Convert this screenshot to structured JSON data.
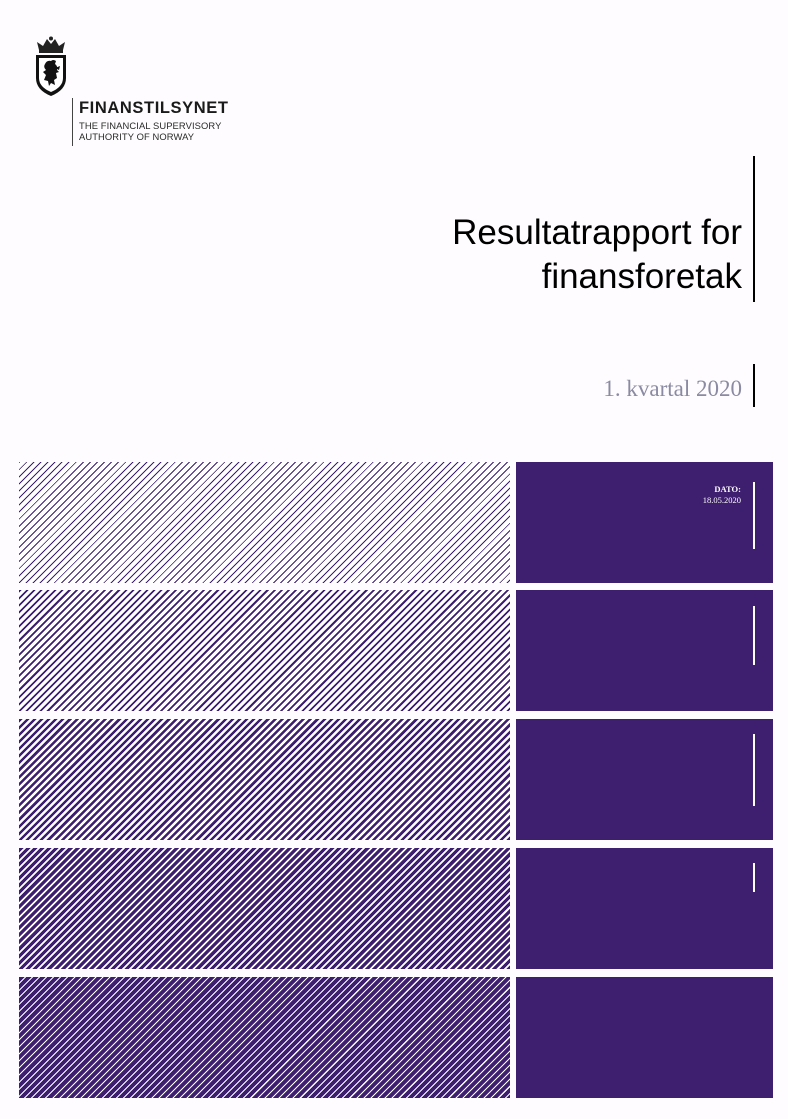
{
  "header": {
    "org_name": "FINANSTILSYNET",
    "org_sub_line1": "THE FINANCIAL SUPERVISORY",
    "org_sub_line2": "AUTHORITY OF NORWAY",
    "logo_icon": "coat-of-arms-crest-icon"
  },
  "cover": {
    "title_line1": "Resultatrapport for",
    "title_line2": "finansforetak",
    "subtitle": "1. kvartal 2020"
  },
  "info": {
    "date_label": "DATO:",
    "date_value": "18.05.2020"
  },
  "colors": {
    "accent": "#3e1e6e",
    "subtitle_grey": "#8a8aa2",
    "background": "#fefcfe"
  }
}
